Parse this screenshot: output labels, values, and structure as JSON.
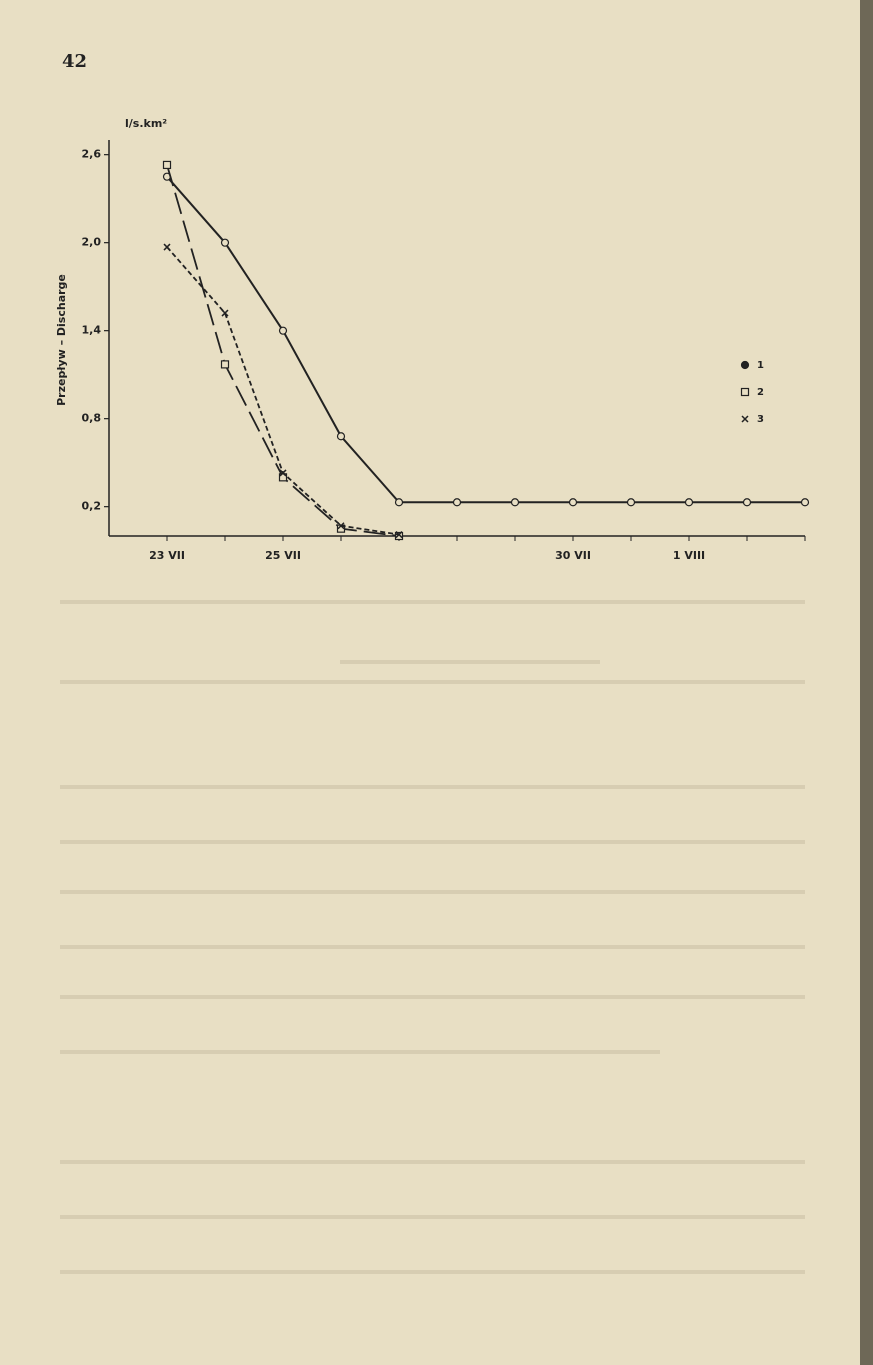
{
  "page_number": "42",
  "chart_data": {
    "type": "line",
    "y_label": "Przepływ – Discharge",
    "y_unit": "l/s.km²",
    "categories": [
      "23 VII",
      null,
      "25 VII",
      null,
      null,
      null,
      null,
      "30 VII",
      null,
      "1 VIII",
      null,
      null
    ],
    "ylim": [
      0,
      2.7
    ],
    "yticks": [
      {
        "value": 0.2,
        "label": "0,2"
      },
      {
        "value": 0.8,
        "label": "0,8"
      },
      {
        "value": 1.4,
        "label": "1,4"
      },
      {
        "value": 2.0,
        "label": "2,0"
      },
      {
        "value": 2.6,
        "label": "2,6"
      }
    ],
    "legend": "right",
    "series": [
      {
        "name": "1",
        "color": "#222222",
        "marker": "circle",
        "line_style": "solid",
        "values": [
          2.45,
          2.0,
          1.4,
          0.68,
          0.23,
          0.23,
          0.23,
          0.23,
          0.23,
          0.23,
          0.23,
          0.23
        ]
      },
      {
        "name": "2",
        "color": "#222222",
        "marker": "square",
        "line_style": "long-dash",
        "values": [
          2.53,
          1.17,
          0.4,
          0.05,
          0.0,
          null,
          null,
          null,
          null,
          null,
          null,
          null
        ]
      },
      {
        "name": "3",
        "color": "#222222",
        "marker": "x",
        "line_style": "short-dash",
        "values": [
          1.97,
          1.52,
          0.43,
          0.07,
          0.01,
          null,
          null,
          null,
          null,
          null,
          null,
          null
        ]
      }
    ]
  }
}
